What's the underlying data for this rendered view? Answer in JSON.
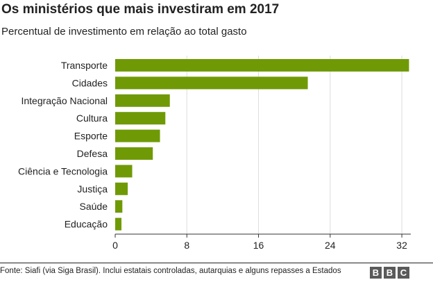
{
  "header": {
    "title": "Os ministérios que mais investiram em 2017",
    "subtitle": "Percentual de investimento em relação ao total gasto"
  },
  "footer": {
    "source": "Fonte: Siafi (via Siga Brasil). Inclui estatais controladas, autarquias e alguns repasses a Estados",
    "logo_text": "BBC"
  },
  "colors": {
    "bar": "#6f9a06",
    "grid": "#dcdcdc",
    "text": "#222222"
  },
  "chart_data": {
    "type": "bar",
    "orientation": "horizontal",
    "title": "Os ministérios que mais investiram em 2017",
    "subtitle": "Percentual de investimento em relação ao total gasto",
    "categories": [
      "Transporte",
      "Cidades",
      "Integração Nacional",
      "Cultura",
      "Esporte",
      "Defesa",
      "Ciência e Tecnologia",
      "Justiça",
      "Saúde",
      "Educação"
    ],
    "values": [
      32.8,
      21.5,
      6.1,
      5.6,
      5.0,
      4.2,
      1.9,
      1.4,
      0.8,
      0.7
    ],
    "xlim": [
      0,
      33
    ],
    "xticks": [
      0,
      8,
      16,
      24,
      32
    ],
    "xlabel": "",
    "ylabel": "",
    "grid": true,
    "legend": "none"
  }
}
